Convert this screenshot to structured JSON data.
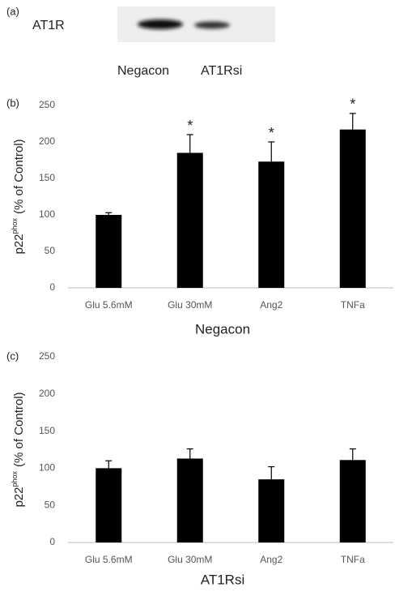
{
  "blot": {
    "panel": "(a)",
    "protein": "AT1R",
    "lanes": [
      "Negacon",
      "AT1Rsi"
    ]
  },
  "chart_data": [
    {
      "type": "bar",
      "panel": "(b)",
      "ylabel": [
        "p22",
        "phox",
        "(% of Control)"
      ],
      "xlabel": "Negacon",
      "categories": [
        "Glu 5.6mM",
        "Glu 30mM",
        "Ang2",
        "TNFa"
      ],
      "values": [
        100,
        185,
        173,
        217
      ],
      "errors": [
        3,
        25,
        27,
        22
      ],
      "significance": [
        null,
        "*",
        "*",
        "*"
      ],
      "color": "#000000",
      "ylim": [
        0,
        250
      ],
      "yticks": [
        0,
        50,
        100,
        150,
        200,
        250
      ],
      "grid": false
    },
    {
      "type": "bar",
      "panel": "(c)",
      "ylabel": [
        "p22",
        "phox",
        "(% of Control)"
      ],
      "xlabel": "AT1Rsi",
      "categories": [
        "Glu 5.6mM",
        "Glu 30mM",
        "Ang2",
        "TNFa"
      ],
      "values": [
        100,
        113,
        85,
        111
      ],
      "errors": [
        10,
        13,
        17,
        15
      ],
      "color": "#000000",
      "ylim": [
        0,
        250
      ],
      "yticks": [
        0,
        50,
        100,
        150,
        200,
        250
      ],
      "grid": false
    }
  ]
}
